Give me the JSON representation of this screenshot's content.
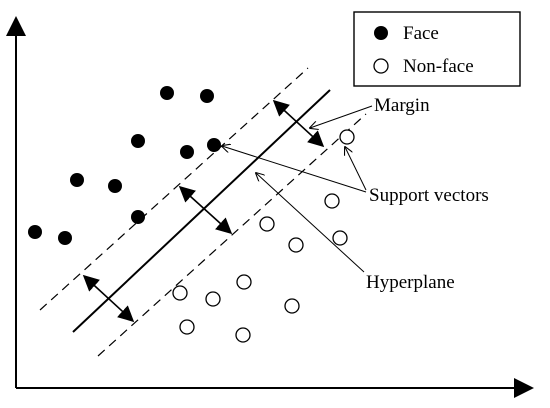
{
  "legend": {
    "items": [
      {
        "label": "Face",
        "marker": "filled-circle"
      },
      {
        "label": "Non-face",
        "marker": "hollow-circle"
      }
    ]
  },
  "annotations": {
    "margin": "Margin",
    "support_vectors": "Support vectors",
    "hyperplane": "Hyperplane"
  },
  "classes": {
    "face": {
      "fill": "#000000"
    },
    "nonface": {
      "fill": "#ffffff",
      "stroke": "#000000"
    }
  }
}
